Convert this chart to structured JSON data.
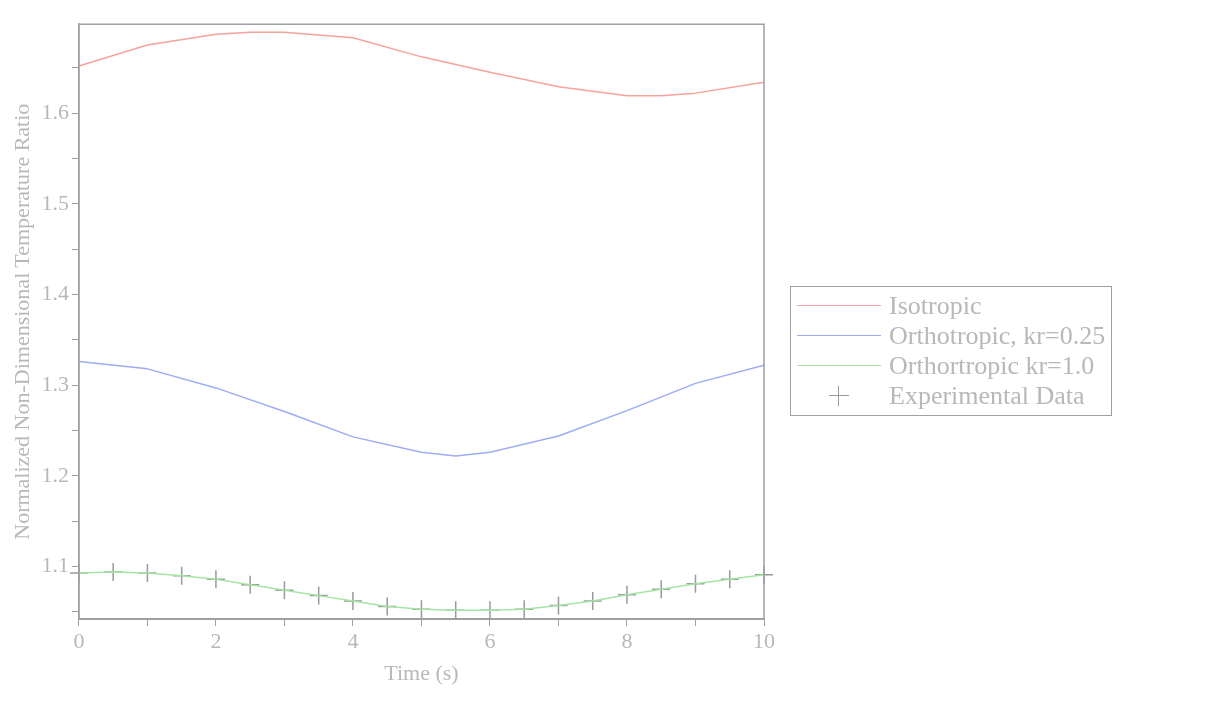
{
  "chart_data": {
    "type": "line",
    "xlabel": "Time (s)",
    "ylabel": "Normalized Non-Dimensional Temperature Ratio",
    "x": [
      0,
      0.5,
      1,
      1.5,
      2,
      2.5,
      3,
      3.5,
      4,
      4.5,
      5,
      5.5,
      6,
      6.5,
      7,
      7.5,
      8,
      8.5,
      9,
      9.5,
      10
    ],
    "xlim": [
      0,
      10
    ],
    "xticks": [
      0,
      {
        "value": 1,
        "label": null
      },
      2,
      {
        "value": 3,
        "label": null
      },
      4,
      {
        "value": 5,
        "label": null
      },
      6,
      {
        "value": 7,
        "label": null
      },
      8,
      {
        "value": 9,
        "label": null
      },
      10
    ],
    "ylim": [
      1.042,
      1.698
    ],
    "yticks": [
      {
        "value": 1.05,
        "label": null
      },
      1.1,
      {
        "value": 1.15,
        "label": null
      },
      1.2,
      {
        "value": 1.25,
        "label": null
      },
      1.3,
      {
        "value": 1.35,
        "label": null
      },
      1.4,
      {
        "value": 1.45,
        "label": null
      },
      1.5,
      {
        "value": 1.55,
        "label": null
      },
      1.6,
      {
        "value": 1.65,
        "label": null
      }
    ],
    "grid": false,
    "legend": "right",
    "marker": "none",
    "line_style": "solid",
    "series": [
      {
        "name": "Isotropic",
        "color": "#f5a39c",
        "type": "line",
        "x": [
          0,
          1,
          2,
          2.5,
          3,
          4,
          5,
          6,
          7,
          8,
          8.5,
          9,
          10
        ],
        "values": [
          1.652,
          1.675,
          1.687,
          1.689,
          1.689,
          1.683,
          1.662,
          1.645,
          1.629,
          1.619,
          1.619,
          1.622,
          1.634
        ]
      },
      {
        "name": "Orthotropic, kr=0.25",
        "color": "#9cacf5",
        "type": "line",
        "x": [
          0,
          1,
          2,
          3,
          4,
          5,
          5.5,
          6,
          7,
          8,
          9,
          10
        ],
        "values": [
          1.326,
          1.318,
          1.297,
          1.271,
          1.243,
          1.226,
          1.222,
          1.226,
          1.244,
          1.272,
          1.302,
          1.322
        ]
      },
      {
        "name": "Orthortropic kr=1.0",
        "color": "#a3e6a3",
        "type": "line",
        "values": [
          1.093,
          1.094,
          1.093,
          1.09,
          1.086,
          1.08,
          1.074,
          1.068,
          1.062,
          1.056,
          1.053,
          1.052,
          1.052,
          1.053,
          1.057,
          1.062,
          1.069,
          1.075,
          1.081,
          1.086,
          1.091
        ]
      },
      {
        "name": "Experimental Data",
        "color": "#9a9a9a",
        "type": "scatter",
        "marker": "cross",
        "values": [
          1.093,
          1.094,
          1.093,
          1.09,
          1.086,
          1.08,
          1.074,
          1.068,
          1.062,
          1.056,
          1.053,
          1.052,
          1.052,
          1.053,
          1.057,
          1.062,
          1.069,
          1.075,
          1.081,
          1.086,
          1.091
        ]
      }
    ]
  }
}
